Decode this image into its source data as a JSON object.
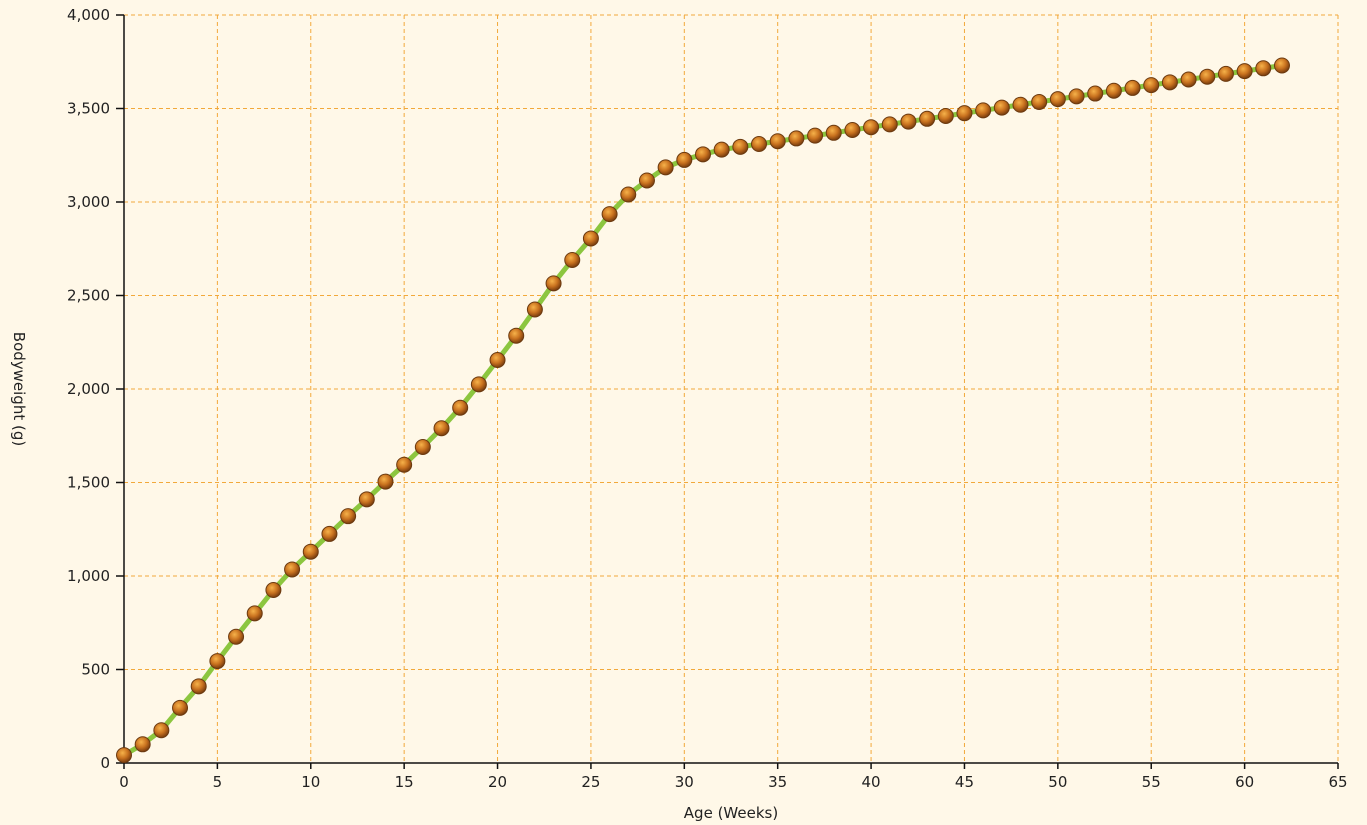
{
  "chart_data": {
    "type": "line",
    "title": "",
    "xlabel": "Age (Weeks)",
    "ylabel": "Bodyweight (g)",
    "xlim": [
      0,
      65
    ],
    "ylim": [
      0,
      4000
    ],
    "x_ticks": [
      0,
      5,
      10,
      15,
      20,
      25,
      30,
      35,
      40,
      45,
      50,
      55,
      60,
      65
    ],
    "y_ticks": [
      0,
      500,
      1000,
      1500,
      2000,
      2500,
      3000,
      3500,
      4000
    ],
    "x_tick_labels": [
      "0",
      "5",
      "10",
      "15",
      "20",
      "25",
      "30",
      "35",
      "40",
      "45",
      "50",
      "55",
      "60",
      "65"
    ],
    "y_tick_labels": [
      "0",
      "500",
      "1,000",
      "1,500",
      "2,000",
      "2,500",
      "3,000",
      "3,500",
      "4,000"
    ],
    "grid": true,
    "line_color": "#8cc63f",
    "marker_color": "#b8651b",
    "grid_color": "#f2a93b",
    "background": "#fff8e8",
    "series": [
      {
        "x": [
          0,
          1,
          2,
          3,
          4,
          5,
          6,
          7,
          8,
          9,
          10,
          11,
          12,
          13,
          14,
          15,
          16,
          17,
          18,
          19,
          20,
          21,
          22,
          23,
          24,
          25,
          26,
          27,
          28,
          29,
          30,
          31,
          32,
          33,
          34,
          35,
          36,
          37,
          38,
          39,
          40,
          41,
          42,
          43,
          44,
          45,
          46,
          47,
          48,
          49,
          50,
          51,
          52,
          53,
          54,
          55,
          56,
          57,
          58,
          59,
          60,
          61,
          62
        ],
        "values": [
          42,
          100,
          175,
          295,
          410,
          545,
          675,
          800,
          925,
          1035,
          1130,
          1225,
          1320,
          1410,
          1505,
          1595,
          1690,
          1790,
          1900,
          2025,
          2155,
          2285,
          2425,
          2565,
          2690,
          2805,
          2935,
          3040,
          3115,
          3185,
          3225,
          3255,
          3280,
          3295,
          3310,
          3325,
          3340,
          3355,
          3370,
          3385,
          3400,
          3415,
          3430,
          3445,
          3460,
          3475,
          3490,
          3505,
          3520,
          3535,
          3550,
          3565,
          3580,
          3595,
          3610,
          3625,
          3640,
          3655,
          3670,
          3685,
          3700,
          3715,
          3730
        ]
      }
    ]
  }
}
